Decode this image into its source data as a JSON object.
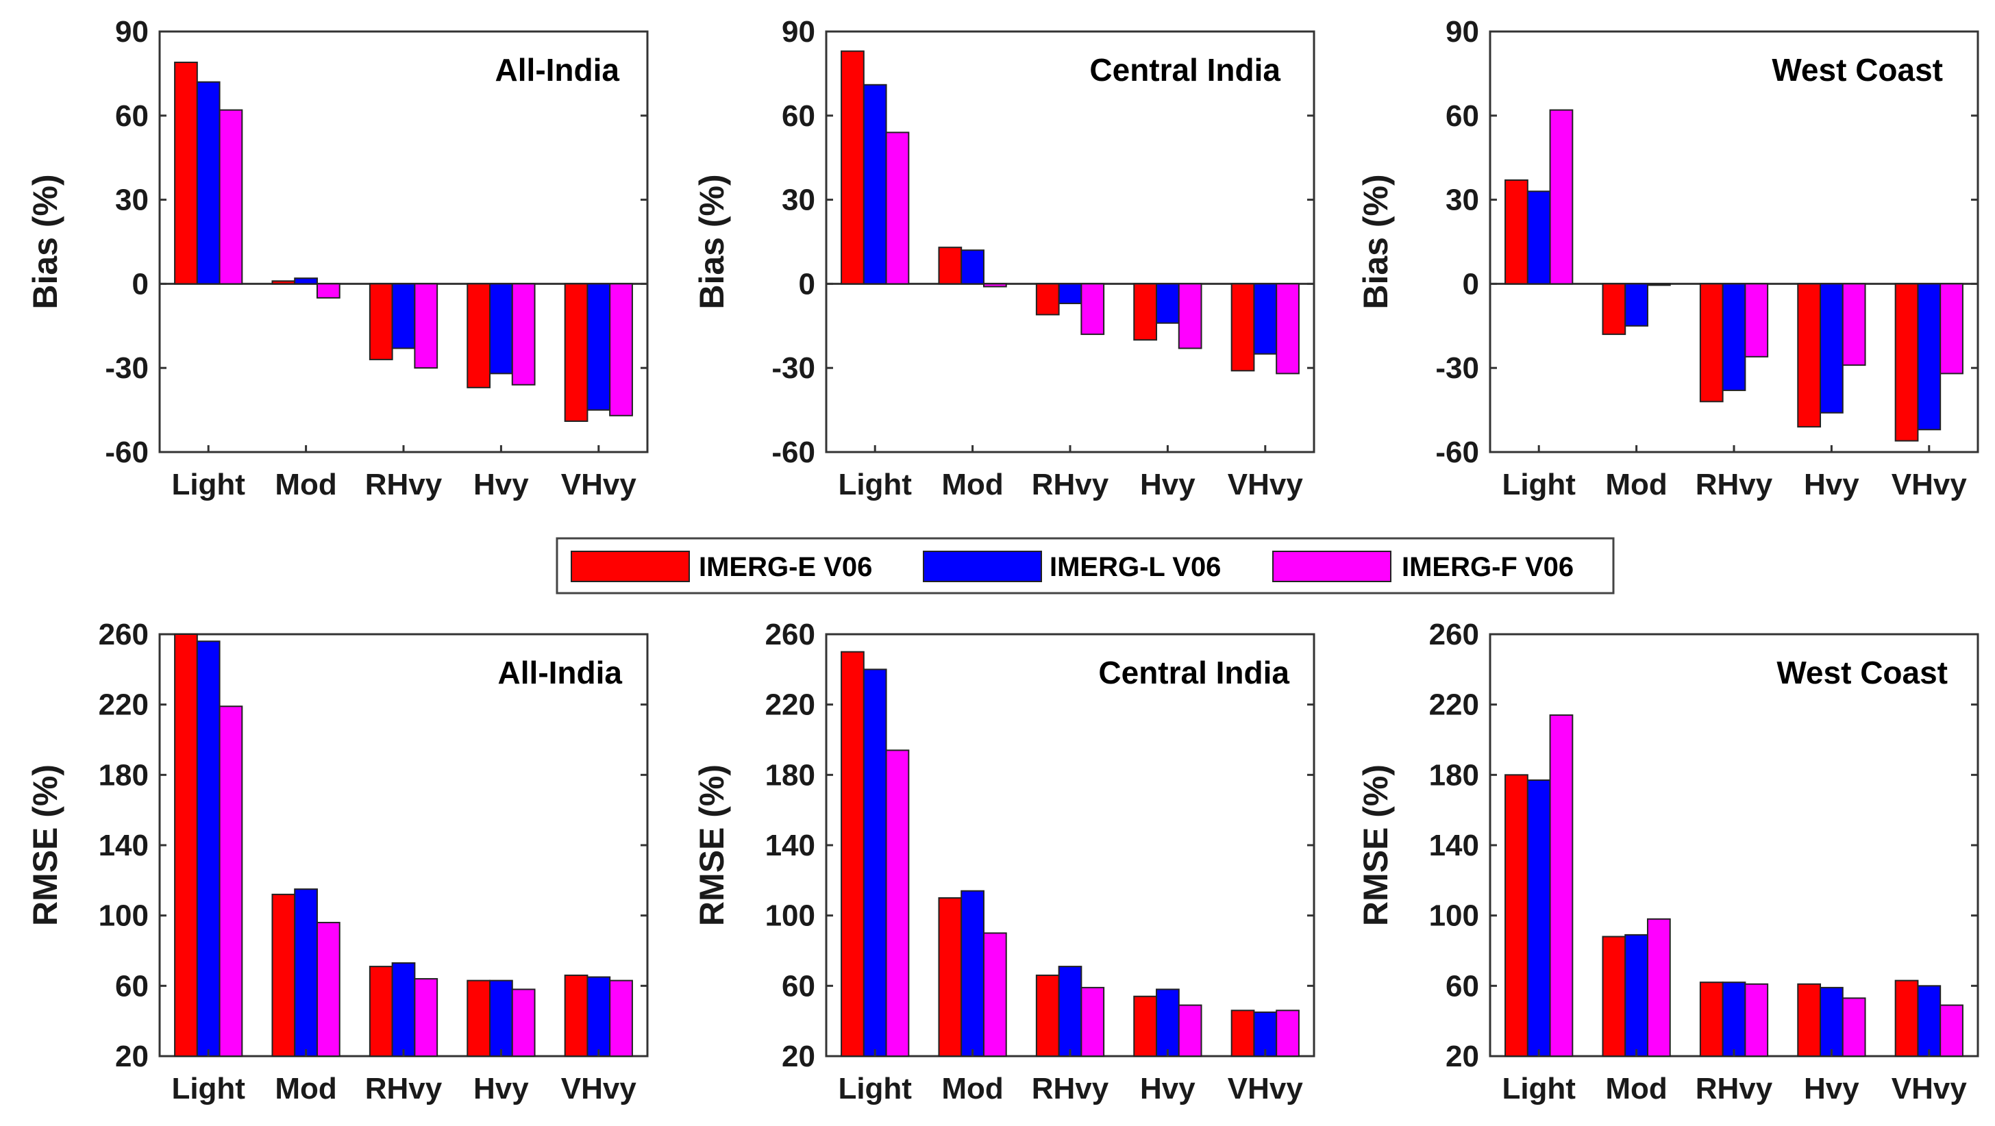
{
  "chart_data": [
    {
      "type": "bar",
      "panel": "bias-all-india",
      "title": "All-India",
      "ylabel": "Bias (%)",
      "ylim": [
        -60,
        90
      ],
      "yticks": [
        90,
        60,
        30,
        0,
        -30,
        -60
      ],
      "categories": [
        "Light",
        "Mod",
        "RHvy",
        "Hvy",
        "VHvy"
      ],
      "series": [
        {
          "name": "IMERG-E V06",
          "values": [
            79,
            1,
            -27,
            -37,
            -49
          ]
        },
        {
          "name": "IMERG-L V06",
          "values": [
            72,
            2,
            -23,
            -32,
            -45
          ]
        },
        {
          "name": "IMERG-F V06",
          "values": [
            62,
            -5,
            -30,
            -36,
            -47
          ]
        }
      ]
    },
    {
      "type": "bar",
      "panel": "bias-central-india",
      "title": "Central India",
      "ylabel": "Bias (%)",
      "ylim": [
        -60,
        90
      ],
      "yticks": [
        90,
        60,
        30,
        0,
        -30,
        -60
      ],
      "categories": [
        "Light",
        "Mod",
        "RHvy",
        "Hvy",
        "VHvy"
      ],
      "series": [
        {
          "name": "IMERG-E V06",
          "values": [
            83,
            13,
            -11,
            -20,
            -31
          ]
        },
        {
          "name": "IMERG-L V06",
          "values": [
            71,
            12,
            -7,
            -14,
            -25
          ]
        },
        {
          "name": "IMERG-F V06",
          "values": [
            54,
            -1,
            -18,
            -23,
            -32
          ]
        }
      ]
    },
    {
      "type": "bar",
      "panel": "bias-west-coast",
      "title": "West Coast",
      "ylabel": "Bias (%)",
      "ylim": [
        -60,
        90
      ],
      "yticks": [
        90,
        60,
        30,
        0,
        -30,
        -60
      ],
      "categories": [
        "Light",
        "Mod",
        "RHvy",
        "Hvy",
        "VHvy"
      ],
      "series": [
        {
          "name": "IMERG-E V06",
          "values": [
            37,
            -18,
            -42,
            -51,
            -56
          ]
        },
        {
          "name": "IMERG-L V06",
          "values": [
            33,
            -15,
            -38,
            -46,
            -52
          ]
        },
        {
          "name": "IMERG-F V06",
          "values": [
            62,
            0,
            -26,
            -29,
            -32
          ]
        }
      ]
    },
    {
      "type": "bar",
      "panel": "rmse-all-india",
      "title": "All-India",
      "ylabel": "RMSE (%)",
      "ylim": [
        20,
        260
      ],
      "yticks": [
        260,
        220,
        180,
        140,
        100,
        60,
        20
      ],
      "categories": [
        "Light",
        "Mod",
        "RHvy",
        "Hvy",
        "VHvy"
      ],
      "series": [
        {
          "name": "IMERG-E V06",
          "values": [
            260,
            112,
            71,
            63,
            66
          ]
        },
        {
          "name": "IMERG-L V06",
          "values": [
            256,
            115,
            73,
            63,
            65
          ]
        },
        {
          "name": "IMERG-F V06",
          "values": [
            219,
            96,
            64,
            58,
            63
          ]
        }
      ]
    },
    {
      "type": "bar",
      "panel": "rmse-central-india",
      "title": "Central India",
      "ylabel": "RMSE (%)",
      "ylim": [
        20,
        260
      ],
      "yticks": [
        260,
        220,
        180,
        140,
        100,
        60,
        20
      ],
      "categories": [
        "Light",
        "Mod",
        "RHvy",
        "Hvy",
        "VHvy"
      ],
      "series": [
        {
          "name": "IMERG-E V06",
          "values": [
            250,
            110,
            66,
            54,
            46
          ]
        },
        {
          "name": "IMERG-L V06",
          "values": [
            240,
            114,
            71,
            58,
            45
          ]
        },
        {
          "name": "IMERG-F V06",
          "values": [
            194,
            90,
            59,
            49,
            46
          ]
        }
      ]
    },
    {
      "type": "bar",
      "panel": "rmse-west-coast",
      "title": "West Coast",
      "ylabel": "RMSE (%)",
      "ylim": [
        20,
        260
      ],
      "yticks": [
        260,
        220,
        180,
        140,
        100,
        60,
        20
      ],
      "categories": [
        "Light",
        "Mod",
        "RHvy",
        "Hvy",
        "VHvy"
      ],
      "series": [
        {
          "name": "IMERG-E V06",
          "values": [
            180,
            88,
            62,
            61,
            63
          ]
        },
        {
          "name": "IMERG-L V06",
          "values": [
            177,
            89,
            62,
            59,
            60
          ]
        },
        {
          "name": "IMERG-F V06",
          "values": [
            214,
            98,
            61,
            53,
            49
          ]
        }
      ]
    }
  ],
  "legend": {
    "items": [
      {
        "label": "IMERG-E V06",
        "color": "#ff0000"
      },
      {
        "label": "IMERG-L V06",
        "color": "#0000ff"
      },
      {
        "label": "IMERG-F V06",
        "color": "#ff00ff"
      }
    ]
  }
}
